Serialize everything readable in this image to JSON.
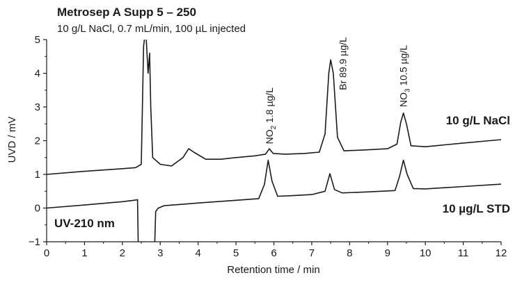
{
  "title": "Metrosep A Supp 5 – 250",
  "subtitle": "10 g/L NaCl, 0.7 mL/min, 100 µL injected",
  "chart_data": {
    "type": "line",
    "xlabel": "Retention time / min",
    "ylabel": "UVD / mV",
    "xlim": [
      0,
      12
    ],
    "ylim": [
      -1,
      5
    ],
    "x_ticks": [
      "0",
      "1",
      "2",
      "3",
      "4",
      "5",
      "6",
      "7",
      "8",
      "9",
      "10",
      "11",
      "12"
    ],
    "y_ticks": [
      "−1",
      "0",
      "1",
      "2",
      "3",
      "4",
      "5"
    ],
    "detector_note": "UV-210 nm",
    "series": [
      {
        "name": "10 g/L NaCl",
        "color": "#1a1a1a",
        "points": [
          [
            0,
            1.0
          ],
          [
            1,
            1.09
          ],
          [
            2,
            1.17
          ],
          [
            2.35,
            1.2
          ],
          [
            2.5,
            1.3
          ],
          [
            2.56,
            4.8
          ],
          [
            2.6,
            5.2
          ],
          [
            2.62,
            5.2
          ],
          [
            2.68,
            4.0
          ],
          [
            2.72,
            4.6
          ],
          [
            2.75,
            3.0
          ],
          [
            2.8,
            1.5
          ],
          [
            3.0,
            1.3
          ],
          [
            3.3,
            1.25
          ],
          [
            3.6,
            1.5
          ],
          [
            3.75,
            1.76
          ],
          [
            3.9,
            1.65
          ],
          [
            4.2,
            1.45
          ],
          [
            4.6,
            1.45
          ],
          [
            5.0,
            1.5
          ],
          [
            5.5,
            1.55
          ],
          [
            5.78,
            1.6
          ],
          [
            5.88,
            1.76
          ],
          [
            5.98,
            1.62
          ],
          [
            6.3,
            1.6
          ],
          [
            6.8,
            1.62
          ],
          [
            7.2,
            1.66
          ],
          [
            7.35,
            2.2
          ],
          [
            7.45,
            4.0
          ],
          [
            7.5,
            4.4
          ],
          [
            7.57,
            4.0
          ],
          [
            7.68,
            2.1
          ],
          [
            7.85,
            1.7
          ],
          [
            8.5,
            1.73
          ],
          [
            9.0,
            1.76
          ],
          [
            9.25,
            1.9
          ],
          [
            9.35,
            2.55
          ],
          [
            9.42,
            2.82
          ],
          [
            9.5,
            2.5
          ],
          [
            9.62,
            1.85
          ],
          [
            10.0,
            1.82
          ],
          [
            11.0,
            1.93
          ],
          [
            12.0,
            2.03
          ]
        ]
      },
      {
        "name": "10 µg/L STD",
        "color": "#1a1a1a",
        "points": [
          [
            0,
            0.0
          ],
          [
            1,
            0.09
          ],
          [
            2,
            0.19
          ],
          [
            2.3,
            0.23
          ],
          [
            2.4,
            0.25
          ],
          [
            2.42,
            -1.2
          ],
          [
            2.85,
            -1.2
          ],
          [
            2.88,
            -0.1
          ],
          [
            2.95,
            0.0
          ],
          [
            3.1,
            0.07
          ],
          [
            4.0,
            0.15
          ],
          [
            5.0,
            0.23
          ],
          [
            5.6,
            0.28
          ],
          [
            5.75,
            0.7
          ],
          [
            5.85,
            1.42
          ],
          [
            5.95,
            0.8
          ],
          [
            6.1,
            0.35
          ],
          [
            6.5,
            0.37
          ],
          [
            7.0,
            0.4
          ],
          [
            7.35,
            0.5
          ],
          [
            7.48,
            1.02
          ],
          [
            7.6,
            0.55
          ],
          [
            7.8,
            0.45
          ],
          [
            8.5,
            0.48
          ],
          [
            9.2,
            0.52
          ],
          [
            9.32,
            0.95
          ],
          [
            9.42,
            1.42
          ],
          [
            9.52,
            1.0
          ],
          [
            9.68,
            0.58
          ],
          [
            10.0,
            0.57
          ],
          [
            11.0,
            0.64
          ],
          [
            12.0,
            0.71
          ]
        ]
      }
    ],
    "peak_labels": [
      {
        "prefix": "NO",
        "sub": "2",
        "suffix": " 1.8 µg/L",
        "x": 5.88,
        "y": 1.9
      },
      {
        "prefix": "Br",
        "sub": "",
        "suffix": " 89.9 µg/L",
        "x": 7.82,
        "y": 3.5
      },
      {
        "prefix": "NO",
        "sub": "3",
        "suffix": " 10.5 µg/L",
        "x": 9.42,
        "y": 3.0
      }
    ]
  }
}
